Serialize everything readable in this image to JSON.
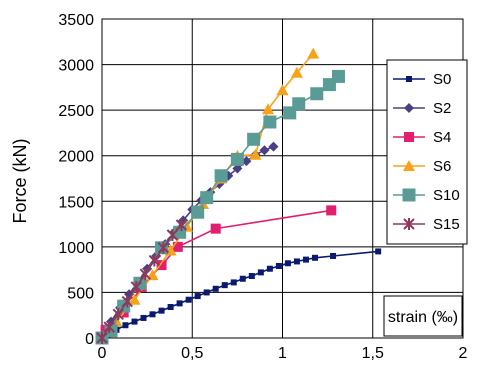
{
  "chart_data": {
    "type": "line",
    "title": "",
    "xlabel": "",
    "ylabel": "Force (kN)",
    "annotation": "strain (‰)",
    "xlim": [
      0,
      2
    ],
    "ylim": [
      0,
      3500
    ],
    "xticks": [
      "0",
      "0,5",
      "1",
      "1,5",
      "2"
    ],
    "yticks": [
      "0",
      "500",
      "1000",
      "1500",
      "2000",
      "2500",
      "3000",
      "3500"
    ],
    "grid": true,
    "legend_position": "right",
    "series": [
      {
        "name": "S0",
        "color": "#0a1a6e",
        "marker": "square-small",
        "x": [
          0,
          0.03,
          0.08,
          0.13,
          0.18,
          0.23,
          0.28,
          0.33,
          0.38,
          0.43,
          0.48,
          0.53,
          0.58,
          0.63,
          0.68,
          0.73,
          0.78,
          0.83,
          0.88,
          0.93,
          0.98,
          1.03,
          1.08,
          1.13,
          1.18,
          1.28,
          1.53
        ],
        "y": [
          0,
          30,
          90,
          140,
          180,
          220,
          260,
          300,
          340,
          380,
          420,
          460,
          500,
          540,
          580,
          610,
          650,
          680,
          720,
          760,
          790,
          820,
          840,
          860,
          880,
          900,
          950
        ]
      },
      {
        "name": "S2",
        "color": "#4b3f82",
        "marker": "diamond",
        "x": [
          0,
          0.05,
          0.1,
          0.15,
          0.2,
          0.25,
          0.3,
          0.35,
          0.4,
          0.45,
          0.5,
          0.55,
          0.6,
          0.65,
          0.7,
          0.75,
          0.8,
          0.85,
          0.9,
          0.95
        ],
        "y": [
          0,
          180,
          330,
          480,
          620,
          760,
          900,
          1030,
          1160,
          1290,
          1410,
          1510,
          1600,
          1690,
          1780,
          1860,
          1940,
          2010,
          2060,
          2100
        ]
      },
      {
        "name": "S4",
        "color": "#e21e6e",
        "marker": "square",
        "x": [
          0,
          0.02,
          0.12,
          0.22,
          0.33,
          0.42,
          0.63,
          1.27
        ],
        "y": [
          0,
          90,
          280,
          560,
          800,
          1000,
          1200,
          1400
        ]
      },
      {
        "name": "S6",
        "color": "#f7a21b",
        "marker": "triangle",
        "x": [
          0,
          0.08,
          0.18,
          0.28,
          0.38,
          0.47,
          0.56,
          0.66,
          0.75,
          0.85,
          0.92,
          1.0,
          1.08,
          1.17
        ],
        "y": [
          0,
          180,
          420,
          690,
          960,
          1220,
          1470,
          1750,
          2000,
          2010,
          2510,
          2720,
          2910,
          3120
        ]
      },
      {
        "name": "S10",
        "color": "#5b9b96",
        "marker": "square-large",
        "x": [
          0,
          0.05,
          0.12,
          0.21,
          0.33,
          0.43,
          0.53,
          0.58,
          0.66,
          0.75,
          0.84,
          0.93,
          1.04,
          1.09,
          1.19,
          1.26,
          1.31
        ],
        "y": [
          0,
          80,
          350,
          600,
          990,
          1160,
          1380,
          1540,
          1780,
          1960,
          2180,
          2370,
          2470,
          2570,
          2680,
          2780,
          2870
        ]
      },
      {
        "name": "S15",
        "color": "#8c3a5c",
        "marker": "star",
        "x": [
          0,
          0.04,
          0.09,
          0.14,
          0.19,
          0.24,
          0.29,
          0.34,
          0.39,
          0.44
        ],
        "y": [
          0,
          120,
          260,
          400,
          560,
          700,
          850,
          990,
          1130,
          1240
        ]
      }
    ]
  }
}
